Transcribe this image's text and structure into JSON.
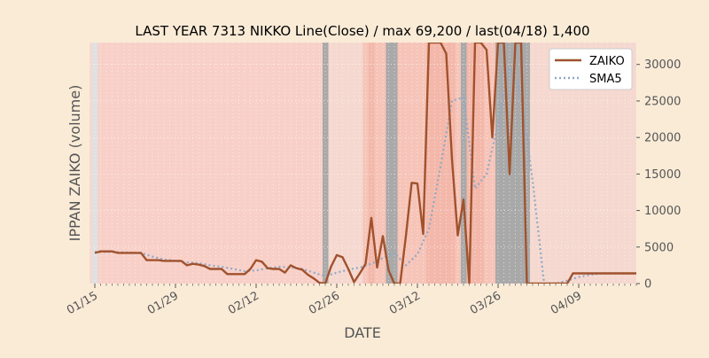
{
  "chart_data": {
    "type": "line",
    "title": "LAST YEAR 7313 NIKKO Line(Close) / max 69,200 / last(04/18) 1,400",
    "xlabel": "DATE",
    "ylabel": "IPPAN ZAIKO (volume)",
    "ylim": [
      0,
      33000
    ],
    "x_range_day": [
      0,
      94
    ],
    "x_ticks": [
      {
        "day": 0,
        "label": "01/15"
      },
      {
        "day": 14,
        "label": "01/29"
      },
      {
        "day": 28,
        "label": "02/12"
      },
      {
        "day": 42,
        "label": "02/26"
      },
      {
        "day": 56,
        "label": "03/12"
      },
      {
        "day": 70,
        "label": "03/26"
      },
      {
        "day": 84,
        "label": "04/09"
      }
    ],
    "y_ticks": [
      0,
      5000,
      10000,
      15000,
      20000,
      25000,
      30000
    ],
    "y_tick_labels": [
      "0",
      "5000",
      "10000",
      "15000",
      "20000",
      "25000",
      "30000"
    ],
    "grid": true,
    "legend": {
      "placement": "top-right"
    },
    "series": [
      {
        "name": "ZAIKO",
        "color": "#a0522d",
        "style": "solid",
        "x_day": [
          0,
          1,
          2,
          3,
          4,
          5,
          6,
          7,
          8,
          9,
          10,
          11,
          12,
          13,
          14,
          15,
          16,
          17,
          18,
          19,
          20,
          21,
          22,
          23,
          24,
          25,
          26,
          27,
          28,
          29,
          30,
          31,
          32,
          33,
          34,
          35,
          36,
          37,
          38,
          39,
          40,
          41,
          42,
          43,
          44,
          45,
          46,
          47,
          48,
          49,
          50,
          51,
          52,
          53,
          54,
          55,
          56,
          57,
          58,
          59,
          60,
          61,
          62,
          63,
          64,
          65,
          66,
          67,
          68,
          69,
          70,
          71,
          72,
          73,
          74,
          75,
          76,
          77,
          78,
          79,
          80,
          81,
          82,
          83,
          84,
          85,
          86,
          87,
          88,
          89,
          90,
          91,
          92,
          93,
          94
        ],
        "y": [
          4200,
          4400,
          4400,
          4400,
          4200,
          4200,
          4200,
          4200,
          4200,
          3200,
          3200,
          3200,
          3100,
          3100,
          3100,
          3100,
          2500,
          2700,
          2600,
          2400,
          2000,
          2000,
          2000,
          1300,
          1300,
          1300,
          1300,
          2000,
          3200,
          3000,
          2100,
          2000,
          2000,
          1500,
          2500,
          2100,
          1900,
          1200,
          700,
          100,
          0,
          2300,
          3900,
          3600,
          2000,
          200,
          1400,
          2700,
          9000,
          2200,
          6500,
          1800,
          0,
          0,
          6500,
          13800,
          13700,
          6800,
          33000,
          33000,
          33000,
          31500,
          17000,
          6600,
          11500,
          0,
          33000,
          33000,
          32000,
          20000,
          33000,
          33000,
          15000,
          33000,
          33000,
          0,
          0,
          0,
          0,
          0,
          0,
          0,
          0,
          1400,
          1400,
          1400,
          1400,
          1400,
          1400,
          1400,
          1400,
          1400,
          1400,
          1400,
          1400
        ]
      },
      {
        "name": "SMA5",
        "color": "#8fa8c8",
        "style": "dotted",
        "x_day": [
          0,
          2,
          4,
          6,
          8,
          10,
          12,
          14,
          16,
          18,
          20,
          22,
          24,
          26,
          28,
          30,
          32,
          34,
          36,
          38,
          40,
          42,
          44,
          46,
          48,
          50,
          52,
          54,
          56,
          58,
          60,
          62,
          64,
          66,
          68,
          70,
          72,
          74,
          76,
          78,
          80,
          82,
          84,
          86,
          88,
          90,
          92,
          94
        ],
        "y": [
          4300,
          4350,
          4300,
          4250,
          4200,
          3700,
          3300,
          3100,
          2900,
          2800,
          2500,
          2300,
          2000,
          1700,
          1800,
          2100,
          2300,
          2200,
          2000,
          1500,
          1000,
          1500,
          1900,
          2200,
          2700,
          3500,
          4200,
          2500,
          4000,
          7500,
          16000,
          25000,
          25500,
          13000,
          15000,
          22000,
          29500,
          26000,
          14000,
          0,
          0,
          400,
          900,
          1200,
          1400,
          1400,
          1400,
          1400
        ]
      }
    ]
  }
}
